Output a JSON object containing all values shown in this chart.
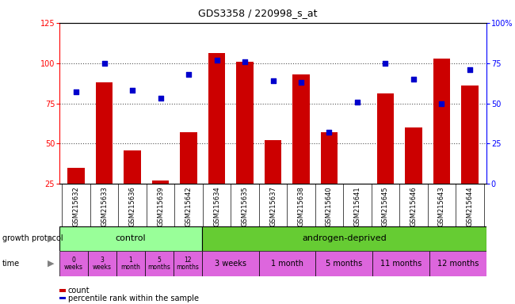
{
  "title": "GDS3358 / 220998_s_at",
  "samples": [
    "GSM215632",
    "GSM215633",
    "GSM215636",
    "GSM215639",
    "GSM215642",
    "GSM215634",
    "GSM215635",
    "GSM215637",
    "GSM215638",
    "GSM215640",
    "GSM215641",
    "GSM215645",
    "GSM215646",
    "GSM215643",
    "GSM215644"
  ],
  "counts": [
    35,
    88,
    46,
    27,
    57,
    106,
    101,
    52,
    93,
    57,
    22,
    81,
    60,
    103,
    86
  ],
  "percentiles": [
    57,
    75,
    58,
    53,
    68,
    77,
    76,
    64,
    63,
    32,
    51,
    75,
    65,
    50,
    71
  ],
  "bar_color": "#cc0000",
  "dot_color": "#0000cc",
  "ylim_left": [
    25,
    125
  ],
  "ylim_right": [
    0,
    100
  ],
  "yticks_left": [
    25,
    50,
    75,
    100,
    125
  ],
  "yticks_right": [
    0,
    25,
    50,
    75,
    100
  ],
  "ytick_labels_right": [
    "0",
    "25",
    "50",
    "75",
    "100%"
  ],
  "hlines": [
    50,
    75,
    100
  ],
  "control_samples": 5,
  "androgen_samples": 10,
  "control_label": "control",
  "androgen_label": "androgen-deprived",
  "control_color": "#99ff99",
  "androgen_color": "#66cc33",
  "time_control": [
    "0\nweeks",
    "3\nweeks",
    "1\nmonth",
    "5\nmonths",
    "12\nmonths"
  ],
  "time_androgen": [
    "3 weeks",
    "1 month",
    "5 months",
    "11 months",
    "12 months"
  ],
  "time_color": "#dd66dd",
  "growth_protocol_label": "growth protocol",
  "time_label": "time",
  "legend_count": "count",
  "legend_percentile": "percentile rank within the sample",
  "bg_color": "#ffffff",
  "sample_bg": "#cccccc",
  "grid_color": "#555555"
}
